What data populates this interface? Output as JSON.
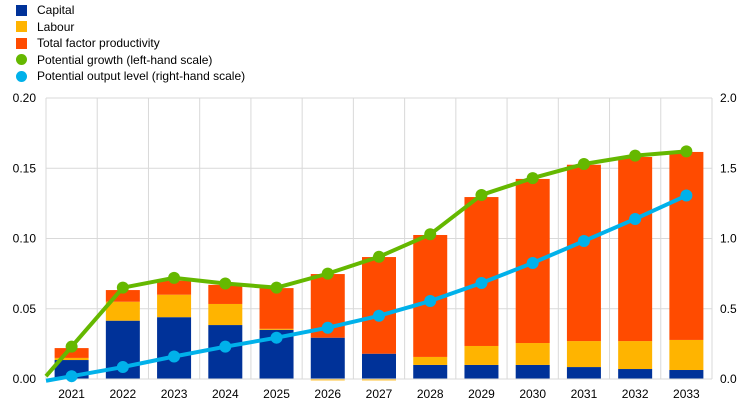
{
  "chart_data": {
    "type": "bar",
    "stacked": true,
    "categories": [
      "2021",
      "2022",
      "2023",
      "2024",
      "2025",
      "2026",
      "2027",
      "2028",
      "2029",
      "2030",
      "2031",
      "2032",
      "2033"
    ],
    "series": [
      {
        "name": "Capital",
        "kind": "bar",
        "axis": "left",
        "color": "#003299",
        "values": [
          0.0135,
          0.0415,
          0.044,
          0.0384,
          0.035,
          0.0294,
          0.018,
          0.01,
          0.01,
          0.01,
          0.0085,
          0.0071,
          0.0064
        ]
      },
      {
        "name": "Labour",
        "kind": "bar",
        "axis": "left",
        "color": "#FFB400",
        "values": [
          0.0015,
          0.0135,
          0.016,
          0.015,
          0.0007,
          -0.001,
          -0.001,
          0.0057,
          0.0135,
          0.0156,
          0.0185,
          0.0199,
          0.0214
        ]
      },
      {
        "name": "Total factor productivity",
        "kind": "bar",
        "axis": "left",
        "color": "#FF4B00",
        "values": [
          0.007,
          0.0083,
          0.01,
          0.0136,
          0.029,
          0.0453,
          0.0688,
          0.0868,
          0.106,
          0.1168,
          0.1255,
          0.131,
          0.1338
        ]
      },
      {
        "name": "Potential growth (left-hand scale)",
        "kind": "line",
        "axis": "left",
        "color": "#65B800",
        "values": [
          0.023,
          0.065,
          0.072,
          0.068,
          0.065,
          0.075,
          0.087,
          0.103,
          0.131,
          0.143,
          0.153,
          0.159,
          0.162
        ]
      },
      {
        "name": "Potential output level (right-hand scale)",
        "kind": "line",
        "axis": "right",
        "color": "#00B1EA",
        "values": [
          0.02,
          0.085,
          0.16,
          0.23,
          0.294,
          0.365,
          0.45,
          0.555,
          0.683,
          0.826,
          0.982,
          1.139,
          1.306
        ]
      }
    ],
    "left_axis": {
      "ylim": [
        0,
        0.2
      ],
      "ticks": [
        "0.00",
        "0.05",
        "0.10",
        "0.15",
        "0.20"
      ]
    },
    "right_axis": {
      "ylim": [
        0,
        2.0
      ],
      "ticks": [
        "0.0",
        "0.5",
        "1.0",
        "1.5",
        "2.0"
      ]
    },
    "grid": true,
    "legend_position": "top-left"
  }
}
